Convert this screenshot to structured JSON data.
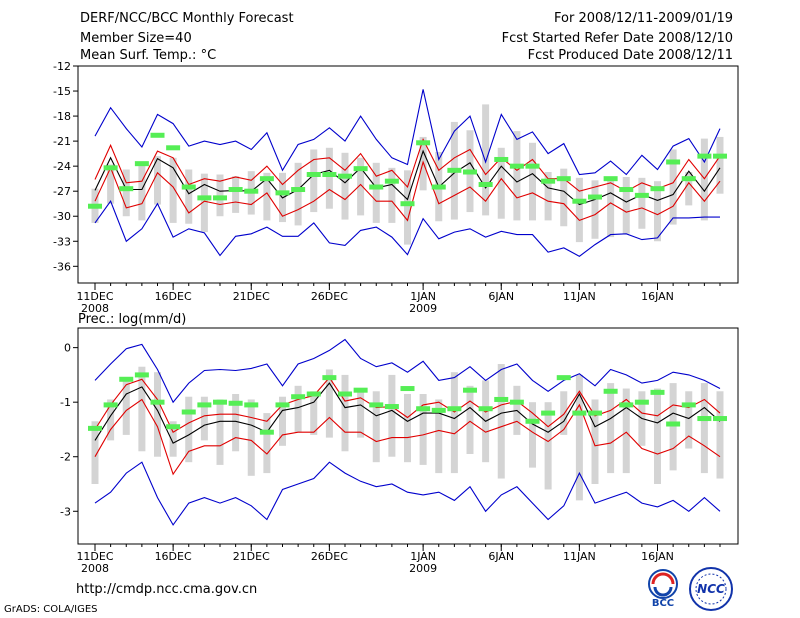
{
  "header": {
    "title": "DERF/NCC/BCC Monthly Forecast",
    "member": "Member Size=40",
    "variable": "Mean Surf. Temp.: °C",
    "period": "For 2008/12/11-2009/01/19",
    "started": "Fcst Started Refer Date 2008/12/10",
    "produced": "Fcst Produced Date 2008/12/11"
  },
  "footer": {
    "url": "http://cmdp.ncc.cma.gov.cn",
    "grads": "GrADS: COLA/IGES",
    "logo_bcc": "BCC",
    "logo_ncc": "NCC"
  },
  "colors": {
    "envelope": "#0000cc",
    "spread": "#e00000",
    "mean": "#000000",
    "observed": "#55ee55",
    "box": "#d4d4d4"
  },
  "chart_data": [
    {
      "type": "line",
      "name": "temperature",
      "title": "Mean Surf. Temp.: °C",
      "ylim": [
        -38,
        -12
      ],
      "yticks": [
        -12,
        -15,
        -18,
        -21,
        -24,
        -27,
        -30,
        -33,
        -36
      ],
      "x_ticks": [
        {
          "day": 0,
          "label": "11DEC",
          "sub": "2008"
        },
        {
          "day": 5,
          "label": "16DEC",
          "sub": ""
        },
        {
          "day": 10,
          "label": "21DEC",
          "sub": ""
        },
        {
          "day": 15,
          "label": "26DEC",
          "sub": ""
        },
        {
          "day": 21,
          "label": "1JAN",
          "sub": "2009"
        },
        {
          "day": 26,
          "label": "6JAN",
          "sub": ""
        },
        {
          "day": 31,
          "label": "11JAN",
          "sub": ""
        },
        {
          "day": 36,
          "label": "16JAN",
          "sub": ""
        }
      ],
      "series": [
        {
          "name": "max",
          "values": [
            -20.4,
            -17,
            -19.5,
            -21.7,
            -17.8,
            -18.9,
            -21.6,
            -21,
            -21.4,
            -21,
            -22,
            -20,
            -24.5,
            -21.4,
            -20.8,
            -19.4,
            -21,
            -18,
            -20.8,
            -23,
            -23.8,
            -14.8,
            -23.2,
            -19.8,
            -18,
            -23.5,
            -17.8,
            -20.8,
            -19.9,
            -22.5,
            -21.3,
            -25,
            -24.8,
            -23.4,
            -25,
            -22.7,
            -24.4,
            -21.6,
            -20.7,
            -23.5,
            -19.5
          ]
        },
        {
          "name": "upper",
          "values": [
            -25.6,
            -21.5,
            -26,
            -25.8,
            -22.2,
            -23,
            -26.2,
            -25.5,
            -25.8,
            -25.3,
            -25.7,
            -24,
            -26.2,
            -24.5,
            -23.2,
            -23,
            -24.5,
            -22.5,
            -25.2,
            -24.5,
            -26.5,
            -20.8,
            -24.5,
            -23,
            -22,
            -25,
            -23,
            -24.5,
            -23.2,
            -25.5,
            -25.5,
            -27,
            -26.5,
            -26,
            -27,
            -26,
            -26.7,
            -26,
            -23.2,
            -25.5,
            -22.8
          ]
        },
        {
          "name": "mean",
          "values": [
            -26.9,
            -23,
            -26.8,
            -26.8,
            -23.1,
            -24.2,
            -27.3,
            -26.2,
            -27,
            -26.9,
            -27,
            -25.5,
            -27.8,
            -26.8,
            -25,
            -24.5,
            -26,
            -24.2,
            -26.6,
            -26.2,
            -28,
            -22.2,
            -26.5,
            -24.8,
            -23.6,
            -26.6,
            -24,
            -25.9,
            -24.9,
            -26.6,
            -27,
            -28.6,
            -28,
            -27.2,
            -28.3,
            -27.4,
            -28.1,
            -27.4,
            -24.6,
            -27,
            -24.2
          ]
        },
        {
          "name": "lower",
          "values": [
            -28.2,
            -24.2,
            -29,
            -28.5,
            -24.8,
            -26.5,
            -29.6,
            -28.2,
            -28.6,
            -28.3,
            -28.6,
            -27.2,
            -30,
            -29.2,
            -28.2,
            -26.8,
            -28,
            -26.2,
            -28.2,
            -28.2,
            -30.5,
            -23.5,
            -28.5,
            -27.5,
            -26.5,
            -28.2,
            -25.5,
            -27.8,
            -27.2,
            -28.2,
            -28.5,
            -30.5,
            -29.8,
            -28.4,
            -29.5,
            -29,
            -29.8,
            -28.8,
            -26,
            -28.2,
            -25.8
          ]
        },
        {
          "name": "min",
          "values": [
            -30.8,
            -28.2,
            -33,
            -31.5,
            -28.5,
            -32.5,
            -31.5,
            -32,
            -34.7,
            -32.4,
            -32.1,
            -31.3,
            -32.4,
            -32.4,
            -30.8,
            -33.2,
            -33.5,
            -31.7,
            -31.3,
            -32.5,
            -34.6,
            -30.3,
            -32.7,
            -31.9,
            -31.5,
            -32.5,
            -31.8,
            -32.2,
            -32.2,
            -34.3,
            -33.8,
            -34.8,
            -33.4,
            -32.2,
            -32.1,
            -32.8,
            -32.6,
            -30.2,
            -30.2,
            -30.1,
            -30.1
          ]
        },
        {
          "name": "observed",
          "values": [
            -28.8,
            -24.2,
            -26.7,
            -23.7,
            -20.3,
            -21.8,
            -26.5,
            -27.8,
            -27.8,
            -26.8,
            -27,
            -25.5,
            -27.2,
            -26.8,
            -25,
            -25,
            -25.2,
            -24.3,
            -26.5,
            -25.8,
            -28.5,
            -21.2,
            -26.5,
            -24.5,
            -24.7,
            -26.2,
            -23.2,
            -24,
            -24,
            -25.8,
            -25.5,
            -28.2,
            -27.7,
            -25.5,
            -26.8,
            -27.5,
            -26.7,
            -23.5,
            -25.5,
            -22.8,
            -22.8
          ]
        }
      ],
      "boxes": [
        [
          -26.7,
          -30.8
        ],
        [
          -23.8,
          -28.5
        ],
        [
          -24.4,
          -30
        ],
        [
          -23.6,
          -30.5
        ],
        [
          -22.8,
          -28.6
        ],
        [
          -23,
          -30.8
        ],
        [
          -24.4,
          -30.9
        ],
        [
          -24.9,
          -31.9
        ],
        [
          -25,
          -30
        ],
        [
          -25.2,
          -29.6
        ],
        [
          -24.6,
          -29.8
        ],
        [
          -24.8,
          -30.5
        ],
        [
          -24.8,
          -30.7
        ],
        [
          -23.6,
          -31.1
        ],
        [
          -22,
          -29.5
        ],
        [
          -21.8,
          -29.1
        ],
        [
          -22.4,
          -30.4
        ],
        [
          -23,
          -29.9
        ],
        [
          -23.6,
          -30.8
        ],
        [
          -24.2,
          -30.8
        ],
        [
          -24.5,
          -33.4
        ],
        [
          -20.5,
          -26.9
        ],
        [
          -22.3,
          -30.6
        ],
        [
          -18.7,
          -30.4
        ],
        [
          -19.7,
          -29.5
        ],
        [
          -16.6,
          -29.9
        ],
        [
          -21.8,
          -30.3
        ],
        [
          -19.8,
          -30.5
        ],
        [
          -21.2,
          -30.5
        ],
        [
          -24.7,
          -30.5
        ],
        [
          -24.3,
          -31.2
        ],
        [
          -25.4,
          -33.1
        ],
        [
          -25.7,
          -32.7
        ],
        [
          -25.5,
          -32.5
        ],
        [
          -25.3,
          -32.1
        ],
        [
          -25.4,
          -31.5
        ],
        [
          -25.8,
          -33
        ],
        [
          -22,
          -31
        ],
        [
          -24.7,
          -28.7
        ],
        [
          -20.7,
          -30.5
        ],
        [
          -20.5,
          -27.3
        ]
      ]
    },
    {
      "type": "line",
      "name": "precipitation",
      "title": "Prec.: log(mm/d)",
      "ylim": [
        -3.6,
        0.36
      ],
      "yticks": [
        0,
        -1,
        -2,
        -3
      ],
      "x_ticks": [
        {
          "day": 0,
          "label": "11DEC",
          "sub": "2008"
        },
        {
          "day": 5,
          "label": "16DEC",
          "sub": ""
        },
        {
          "day": 10,
          "label": "21DEC",
          "sub": ""
        },
        {
          "day": 15,
          "label": "26DEC",
          "sub": ""
        },
        {
          "day": 21,
          "label": "1JAN",
          "sub": "2009"
        },
        {
          "day": 26,
          "label": "6JAN",
          "sub": ""
        },
        {
          "day": 31,
          "label": "11JAN",
          "sub": ""
        },
        {
          "day": 36,
          "label": "16JAN",
          "sub": ""
        }
      ],
      "series": [
        {
          "name": "max",
          "values": [
            -0.6,
            -0.3,
            -0.02,
            0.06,
            -0.4,
            -1.0,
            -0.65,
            -0.42,
            -0.4,
            -0.42,
            -0.38,
            -0.3,
            -0.7,
            -0.3,
            -0.2,
            -0.05,
            0.15,
            -0.2,
            -0.35,
            -0.28,
            -0.45,
            -0.25,
            -0.6,
            -0.55,
            -0.35,
            -0.6,
            -0.4,
            -0.3,
            -0.6,
            -0.8,
            -0.6,
            -0.48,
            -0.7,
            -0.4,
            -0.5,
            -0.65,
            -0.6,
            -0.45,
            -0.5,
            -0.6,
            -0.75
          ]
        },
        {
          "name": "upper",
          "values": [
            -1.5,
            -1.05,
            -0.68,
            -0.58,
            -0.95,
            -1.55,
            -1.38,
            -1.25,
            -1.22,
            -1.22,
            -1.28,
            -1.35,
            -1.05,
            -0.95,
            -0.88,
            -0.55,
            -0.98,
            -0.92,
            -1.1,
            -1.08,
            -1.28,
            -1.05,
            -1.0,
            -1.18,
            -0.98,
            -1.18,
            -1.05,
            -0.98,
            -1.2,
            -1.45,
            -1.22,
            -0.8,
            -1.25,
            -1.15,
            -0.95,
            -1.2,
            -1.25,
            -1.05,
            -1.1,
            -0.95,
            -1.2
          ]
        },
        {
          "name": "mean",
          "values": [
            -1.7,
            -1.25,
            -0.85,
            -0.72,
            -1.15,
            -1.75,
            -1.6,
            -1.42,
            -1.35,
            -1.35,
            -1.42,
            -1.55,
            -1.15,
            -1.1,
            -1.0,
            -0.65,
            -1.1,
            -1.05,
            -1.25,
            -1.15,
            -1.35,
            -1.2,
            -1.2,
            -1.3,
            -1.1,
            -1.35,
            -1.2,
            -1.15,
            -1.4,
            -1.55,
            -1.35,
            -0.85,
            -1.45,
            -1.3,
            -1.1,
            -1.3,
            -1.38,
            -1.2,
            -1.3,
            -1.1,
            -1.35
          ]
        },
        {
          "name": "lower",
          "values": [
            -2.0,
            -1.5,
            -1.15,
            -0.95,
            -1.45,
            -2.32,
            -1.9,
            -1.8,
            -1.8,
            -1.65,
            -1.7,
            -1.95,
            -1.6,
            -1.55,
            -1.55,
            -1.28,
            -1.55,
            -1.55,
            -1.72,
            -1.65,
            -1.65,
            -1.6,
            -1.52,
            -1.58,
            -1.35,
            -1.55,
            -1.45,
            -1.35,
            -1.55,
            -1.72,
            -1.5,
            -1.05,
            -1.8,
            -1.75,
            -1.55,
            -1.85,
            -1.95,
            -1.85,
            -1.62,
            -1.8,
            -2.0
          ]
        },
        {
          "name": "min",
          "values": [
            -2.85,
            -2.65,
            -2.3,
            -2.1,
            -2.75,
            -3.25,
            -2.85,
            -2.75,
            -2.85,
            -2.75,
            -2.9,
            -3.15,
            -2.6,
            -2.5,
            -2.4,
            -2.1,
            -2.3,
            -2.45,
            -2.55,
            -2.5,
            -2.65,
            -2.7,
            -2.65,
            -2.8,
            -2.55,
            -3.0,
            -2.7,
            -2.55,
            -2.85,
            -3.15,
            -2.9,
            -2.3,
            -2.85,
            -2.75,
            -2.65,
            -2.85,
            -2.92,
            -2.8,
            -3.0,
            -2.75,
            -3.0
          ]
        },
        {
          "name": "observed",
          "values": [
            -1.48,
            -1.05,
            -0.58,
            -0.5,
            -1.0,
            -1.45,
            -1.18,
            -1.05,
            -1.0,
            -1.02,
            -1.05,
            -1.55,
            -1.05,
            -0.9,
            -0.85,
            -0.55,
            -0.85,
            -0.78,
            -1.05,
            -1.08,
            -0.75,
            -1.12,
            -1.15,
            -1.12,
            -0.78,
            -1.12,
            -0.95,
            -1.0,
            -1.35,
            -1.2,
            -0.55,
            -1.2,
            -1.2,
            -0.8,
            -1.05,
            -1.0,
            -0.82,
            -1.4,
            -1.05,
            -1.3,
            -1.3
          ]
        },
        {
          "name": "observed_ext",
          "values": [
            null,
            null,
            null,
            null,
            null,
            null,
            null,
            null,
            null,
            null,
            null,
            null,
            null,
            null,
            null,
            null,
            null,
            null,
            null,
            null,
            null,
            null,
            null,
            null,
            null,
            null,
            null,
            null,
            null,
            null,
            null,
            null,
            null,
            null,
            null,
            null,
            null,
            null,
            null,
            null,
            null
          ]
        }
      ],
      "boxes": [
        [
          -1.35,
          -2.5
        ],
        [
          -0.95,
          -1.7
        ],
        [
          -0.55,
          -1.6
        ],
        [
          -0.35,
          -1.9
        ],
        [
          -0.45,
          -2.0
        ],
        [
          -1.35,
          -2.0
        ],
        [
          -0.9,
          -2.1
        ],
        [
          -0.9,
          -1.7
        ],
        [
          -0.95,
          -2.15
        ],
        [
          -0.85,
          -1.9
        ],
        [
          -0.95,
          -2.35
        ],
        [
          -1.2,
          -2.3
        ],
        [
          -0.9,
          -1.8
        ],
        [
          -0.7,
          -1.55
        ],
        [
          -0.8,
          -1.6
        ],
        [
          -0.4,
          -1.65
        ],
        [
          -0.5,
          -1.9
        ],
        [
          -0.75,
          -1.65
        ],
        [
          -0.8,
          -2.1
        ],
        [
          -0.5,
          -2.0
        ],
        [
          -0.85,
          -2.1
        ],
        [
          -0.85,
          -2.15
        ],
        [
          -0.95,
          -2.3
        ],
        [
          -0.45,
          -2.3
        ],
        [
          -0.7,
          -1.95
        ],
        [
          -0.6,
          -2.1
        ],
        [
          -0.3,
          -2.4
        ],
        [
          -0.7,
          -1.6
        ],
        [
          -1.0,
          -2.2
        ],
        [
          -1.0,
          -2.6
        ],
        [
          -0.8,
          -1.6
        ],
        [
          -0.5,
          -2.8
        ],
        [
          -0.95,
          -2.5
        ],
        [
          -0.65,
          -2.3
        ],
        [
          -0.75,
          -2.3
        ],
        [
          -0.8,
          -1.8
        ],
        [
          -0.75,
          -2.5
        ],
        [
          -0.65,
          -2.25
        ],
        [
          -0.8,
          -1.85
        ],
        [
          -0.65,
          -2.3
        ],
        [
          -0.8,
          -2.4
        ]
      ]
    }
  ]
}
